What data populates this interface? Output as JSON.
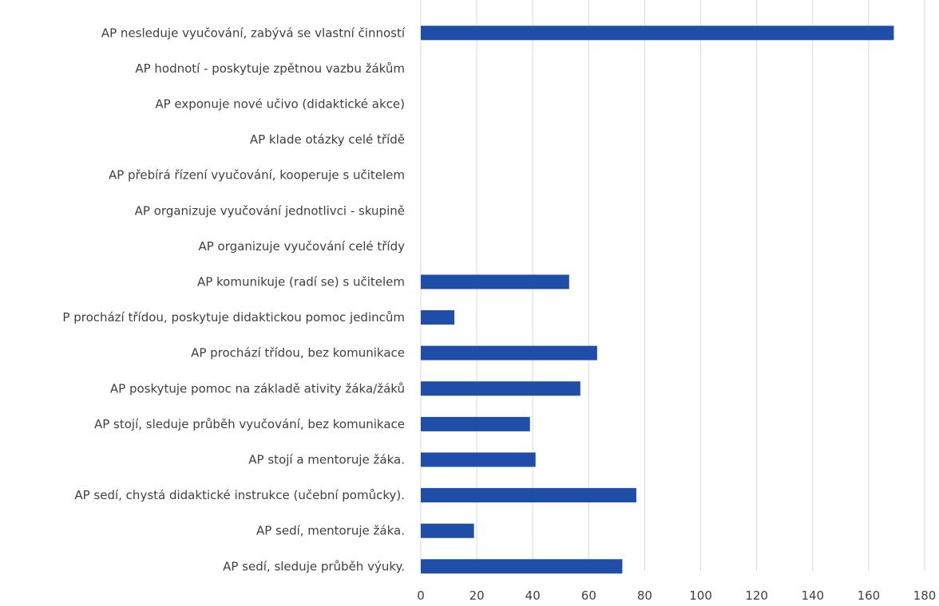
{
  "chart_data": {
    "type": "bar",
    "orientation": "horizontal",
    "title": "",
    "xlabel": "",
    "ylabel": "",
    "xlim": [
      0,
      180
    ],
    "x_ticks": [
      0,
      20,
      40,
      60,
      80,
      100,
      120,
      140,
      160,
      180
    ],
    "grid": true,
    "legend": "none",
    "bar_color": "#1f4ea8",
    "categories": [
      "AP nesleduje vyučování, zabývá se vlastní činností",
      "AP hodnotí - poskytuje zpětnou vazbu žákům",
      "AP exponuje nové učivo (didaktické akce)",
      "AP klade otázky celé třídě",
      "AP přebírá řízení vyučování, kooperuje s učitelem",
      "AP organizuje vyučování jednotlivci - skupině",
      "AP organizuje vyučování celé třídy",
      "AP komunikuje (radí se) s učitelem",
      "P prochází třídou, poskytuje didaktickou pomoc jedincům",
      "AP prochází třídou, bez komunikace",
      "AP poskytuje pomoc na základě ativity žáka/žáků",
      "AP stojí, sleduje průběh vyučování, bez komunikace",
      "AP stojí a mentoruje žáka.",
      "AP sedí, chystá didaktické instrukce (učební pomůcky).",
      "AP sedí, mentoruje žáka.",
      "AP sedí, sleduje průběh výuky."
    ],
    "values": [
      169,
      0,
      0,
      0,
      0,
      0,
      0,
      53,
      12,
      63,
      57,
      39,
      41,
      77,
      19,
      72
    ]
  }
}
